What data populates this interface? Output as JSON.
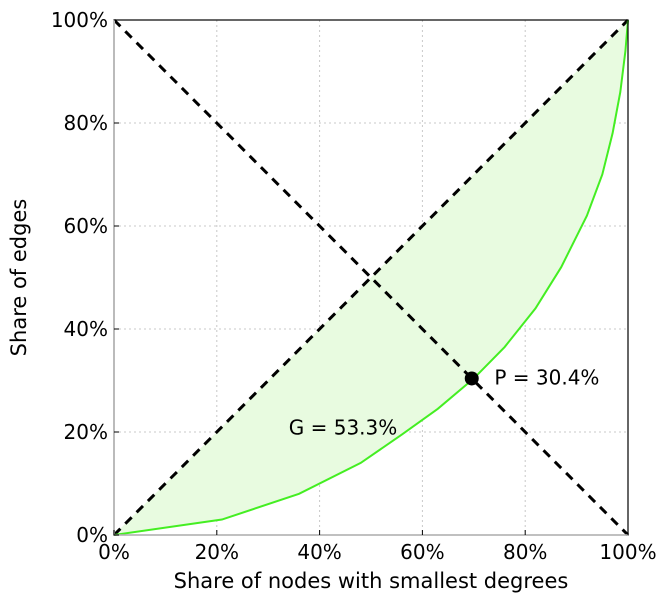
{
  "chart_data": {
    "type": "line",
    "title": "",
    "xlabel": "Share of nodes with smallest degrees",
    "ylabel": "Share of edges",
    "xlim": [
      0,
      100
    ],
    "ylim": [
      0,
      100
    ],
    "x_ticks": [
      "0%",
      "20%",
      "40%",
      "60%",
      "80%",
      "100%"
    ],
    "y_ticks": [
      "0%",
      "20%",
      "40%",
      "60%",
      "80%",
      "100%"
    ],
    "x_tick_values": [
      0,
      20,
      40,
      60,
      80,
      100
    ],
    "y_tick_values": [
      0,
      20,
      40,
      60,
      80,
      100
    ],
    "grid": true,
    "series": [
      {
        "color": "#44ee22",
        "fill": "#e8fbe0",
        "x": [
          0,
          21,
          36,
          48,
          56,
          63,
          70,
          76,
          82,
          87,
          92,
          95,
          97,
          98.5,
          99.5,
          100
        ],
        "y": [
          0,
          3,
          8,
          14,
          19.5,
          24.5,
          30.4,
          36.5,
          44,
          52,
          62,
          70,
          78,
          86,
          94,
          100
        ]
      }
    ],
    "reference_lines": [
      {
        "from": [
          0,
          0
        ],
        "to": [
          100,
          100
        ],
        "style": "dashed",
        "color": "#000000"
      },
      {
        "from": [
          0,
          100
        ],
        "to": [
          100,
          0
        ],
        "style": "dashed",
        "color": "#000000"
      }
    ],
    "marker": {
      "x": 69.6,
      "y": 30.4,
      "color": "#000000"
    },
    "annotations": [
      {
        "text": "G = 53.3%",
        "x": 34,
        "y": 19.5
      },
      {
        "text": "P = 30.4%",
        "x": 74,
        "y": 29.2
      }
    ]
  }
}
